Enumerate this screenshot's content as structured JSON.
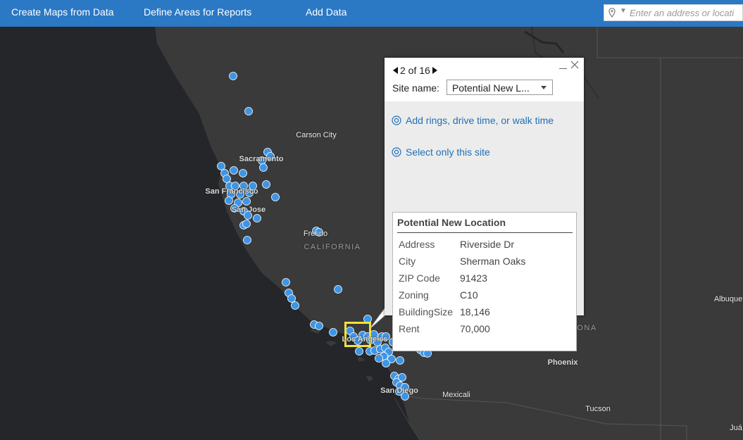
{
  "topbar": {
    "nav": [
      "Create Maps from Data",
      "Define Areas for Reports",
      "Add Data"
    ],
    "search_placeholder": "Enter an address or locati"
  },
  "map": {
    "labels": {
      "carson_city": "Carson City",
      "sacramento": "Sacramento",
      "san_francisco": "San Francisco",
      "san_jose": "San Jose",
      "fresno": "Fresno",
      "california": "CALIFORNIA",
      "los_angeles": "Los Angeles",
      "san_diego": "San Diego",
      "mexicali": "Mexicali",
      "arizona": "ARIZONA",
      "phoenix": "Phoenix",
      "tucson": "Tucson",
      "albuquerque": "Albuque",
      "juarez": "Juá"
    },
    "point_color": "#3d95e6",
    "selection_color": "#f2e23a"
  },
  "popup": {
    "pager": "2 of 16",
    "site_label": "Site name:",
    "site_value": "Potential New L...",
    "action_rings": "Add rings, drive time, or walk time",
    "action_select": "Select only this site",
    "info_title": "Potential New Location",
    "fields": [
      {
        "k": "Address",
        "v": "Riverside Dr"
      },
      {
        "k": "City",
        "v": "Sherman Oaks"
      },
      {
        "k": "ZIP Code",
        "v": "91423"
      },
      {
        "k": "Zoning",
        "v": "C10"
      },
      {
        "k": "BuildingSize",
        "v": "18,146"
      },
      {
        "k": "Rent",
        "v": "70,000"
      }
    ]
  }
}
